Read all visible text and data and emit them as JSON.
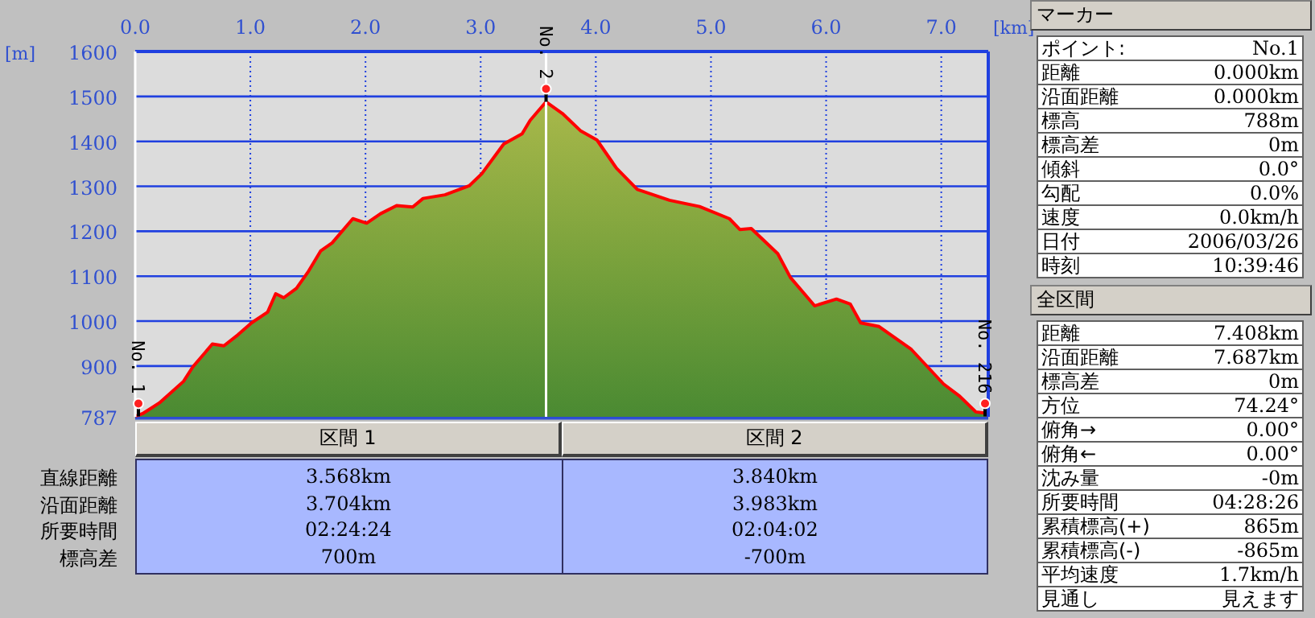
{
  "chart_data": [
    {
      "type": "area",
      "xlabel": "[km]",
      "ylabel": "[m]",
      "grid": true,
      "xlim": [
        0,
        7.408
      ],
      "ylim": [
        787,
        1600
      ],
      "xticks": [
        {
          "value": 0,
          "label": "0.0"
        },
        {
          "value": 1,
          "label": "1.0"
        },
        {
          "value": 2,
          "label": "2.0"
        },
        {
          "value": 3,
          "label": "3.0"
        },
        {
          "value": 4,
          "label": "4.0"
        },
        {
          "value": 5,
          "label": "5.0"
        },
        {
          "value": 6,
          "label": "6.0"
        },
        {
          "value": 7,
          "label": "7.0"
        }
      ],
      "yticks": [
        787,
        900,
        1000,
        1100,
        1200,
        1300,
        1400,
        1500,
        1600
      ],
      "x": [
        0,
        0.07,
        0.21,
        0.42,
        0.5,
        0.59,
        0.67,
        0.77,
        0.89,
        1.01,
        1.15,
        1.22,
        1.29,
        1.4,
        1.5,
        1.61,
        1.71,
        1.89,
        2.01,
        2.13,
        2.27,
        2.41,
        2.5,
        2.69,
        2.9,
        3.01,
        3.2,
        3.36,
        3.43,
        3.568,
        3.71,
        3.87,
        4.01,
        4.18,
        4.36,
        4.64,
        4.9,
        5.16,
        5.25,
        5.35,
        5.58,
        5.69,
        5.9,
        6.09,
        6.21,
        6.3,
        6.46,
        6.74,
        7.02,
        7.16,
        7.3,
        7.39,
        7.408
      ],
      "series": [
        {
          "color": "#7aa23c",
          "values": [
            788,
            795,
            818,
            866,
            898,
            925,
            949,
            945,
            969,
            996,
            1020,
            1061,
            1052,
            1073,
            1109,
            1156,
            1174,
            1228,
            1218,
            1239,
            1257,
            1254,
            1273,
            1281,
            1301,
            1328,
            1394,
            1417,
            1447,
            1488,
            1462,
            1423,
            1403,
            1340,
            1293,
            1269,
            1255,
            1228,
            1204,
            1206,
            1150,
            1097,
            1034,
            1049,
            1038,
            996,
            988,
            937,
            860,
            833,
            798,
            795,
            788
          ]
        }
      ],
      "ref_lines": [
        {
          "axis": "x",
          "value": 3.568,
          "color": "#ffffff"
        }
      ],
      "annotations": [
        {
          "text": "No. 1",
          "x": 0,
          "y": 788
        },
        {
          "text": "No. 2",
          "x": 3.568,
          "y": 1488
        },
        {
          "text": "No. 216",
          "x": 7.408,
          "y": 788
        }
      ]
    },
    {
      "type": "other",
      "categories": [
        "区間 1",
        "区間 2"
      ],
      "y_categories": [
        "直線距離",
        "沿面距離",
        "所要時間",
        "標高差"
      ],
      "cell_labels": [
        [
          "3.568km",
          "3.840km"
        ],
        [
          "3.704km",
          "3.983km"
        ],
        [
          "02:24:24",
          "02:04:02"
        ],
        [
          "700m",
          "-700m"
        ]
      ]
    },
    {
      "type": "other",
      "title": "マーカー",
      "annotations": [
        "ポイント:",
        "No.1",
        "距離",
        "0.000km",
        "沿面距離",
        "0.000km",
        "標高",
        "788m",
        "標高差",
        "0m",
        "傾斜",
        "0.0°",
        "勾配",
        "0.0%",
        "速度",
        "0.0km/h",
        "日付",
        "2006/03/26",
        "時刻",
        "10:39:46"
      ]
    },
    {
      "type": "other",
      "title": "全区間",
      "annotations": [
        "距離",
        "7.408km",
        "沿面距離",
        "7.687km",
        "標高差",
        "0m",
        "方位",
        "74.24°",
        "俯角→",
        "0.00°",
        "俯角←",
        "0.00°",
        "沈み量",
        "-0m",
        "所要時間",
        "04:28:26",
        "累積標高(+)",
        "865m",
        "累積標高(-)",
        "-865m",
        "平均速度",
        "1.7km/h",
        "見通し",
        "見えます"
      ]
    }
  ]
}
